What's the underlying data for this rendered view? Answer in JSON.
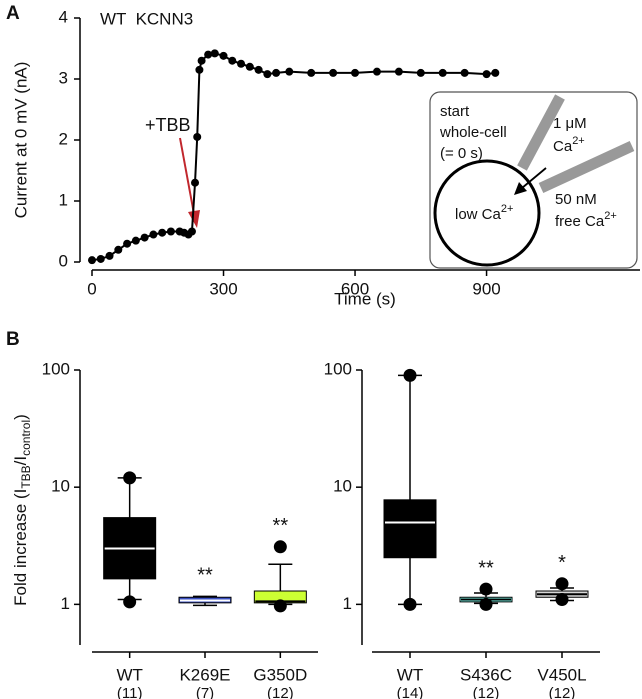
{
  "chart_data": [
    {
      "type": "line",
      "panel": "A",
      "title": "WT  KCNN3",
      "xlabel": "Time (s)",
      "ylabel": "Current at 0 mV (nA)",
      "x": [
        0,
        20,
        40,
        60,
        80,
        100,
        120,
        140,
        160,
        180,
        200,
        210,
        220,
        228,
        235,
        240,
        245,
        250,
        265,
        280,
        300,
        320,
        340,
        360,
        380,
        400,
        420,
        450,
        500,
        550,
        600,
        650,
        700,
        750,
        800,
        850,
        900,
        920
      ],
      "values": [
        0.03,
        0.05,
        0.1,
        0.2,
        0.3,
        0.35,
        0.4,
        0.45,
        0.48,
        0.5,
        0.5,
        0.48,
        0.45,
        0.5,
        1.3,
        2.05,
        3.15,
        3.3,
        3.4,
        3.42,
        3.38,
        3.3,
        3.25,
        3.2,
        3.15,
        3.08,
        3.1,
        3.12,
        3.1,
        3.1,
        3.1,
        3.12,
        3.12,
        3.1,
        3.1,
        3.1,
        3.08,
        3.1
      ],
      "color": "#000000",
      "xlim": [
        0,
        1250
      ],
      "xticks": [
        0,
        300,
        600,
        900
      ],
      "ylim": [
        0,
        4
      ],
      "yticks": [
        0,
        1,
        2,
        3,
        4
      ],
      "annotation": "+TBB",
      "annotation_color": "#c1272d",
      "inset": {
        "start": [
          "start",
          "whole-cell",
          "(= 0 s)"
        ],
        "pipette": [
          "1 μM",
          "Ca",
          "2+"
        ],
        "cell": [
          "low Ca",
          "2+"
        ],
        "bath": [
          "50 nM",
          "free Ca",
          "2+"
        ]
      }
    },
    {
      "type": "box",
      "panel": "B",
      "ylabel": [
        "Fold increase (I",
        "TBB",
        "/I",
        "control",
        ")"
      ],
      "log": true,
      "ylim": [
        0.45,
        100
      ],
      "yticks": [
        1,
        10,
        100
      ],
      "categories": [
        "WT",
        "K269E",
        "G350D"
      ],
      "n_labels": [
        "(11)",
        "(7)",
        "(12)"
      ],
      "significance": [
        null,
        "**",
        "**"
      ],
      "boxes": [
        {
          "whisker_low": 1.1,
          "q1": 1.65,
          "median": 3.0,
          "q3": 5.5,
          "whisker_high": 12,
          "outliers": [
            12,
            1.05
          ],
          "color": "#000000",
          "median_color": "#ffffff"
        },
        {
          "whisker_low": 0.98,
          "q1": 1.03,
          "median": 1.08,
          "q3": 1.15,
          "whisker_high": 1.17,
          "outliers": [],
          "color": "#3a4fc0",
          "median_color": "#ffffff"
        },
        {
          "whisker_low": 1.0,
          "q1": 1.03,
          "median": 1.06,
          "q3": 1.3,
          "whisker_high": 2.2,
          "outliers": [
            3.1,
            0.97
          ],
          "color": "#ccff33",
          "median_color": "#000000"
        }
      ]
    },
    {
      "type": "box",
      "log": true,
      "ylim": [
        0.45,
        100
      ],
      "yticks": [
        1,
        10,
        100
      ],
      "categories": [
        "WT",
        "S436C",
        "V450L"
      ],
      "n_labels": [
        "(14)",
        "(12)",
        "(12)"
      ],
      "significance": [
        null,
        "**",
        "*"
      ],
      "boxes": [
        {
          "whisker_low": 1.0,
          "q1": 2.5,
          "median": 5.0,
          "q3": 7.8,
          "whisker_high": 90,
          "outliers": [
            90,
            1.0
          ],
          "color": "#000000",
          "median_color": "#ffffff"
        },
        {
          "whisker_low": 1.02,
          "q1": 1.05,
          "median": 1.1,
          "q3": 1.15,
          "whisker_high": 1.25,
          "outliers": [
            1.35,
            1.0
          ],
          "color": "#7ffff0",
          "median_color": "#000000"
        },
        {
          "whisker_low": 1.08,
          "q1": 1.15,
          "median": 1.22,
          "q3": 1.3,
          "whisker_high": 1.38,
          "outliers": [
            1.5,
            1.1
          ],
          "color": "#d8d8d8",
          "median_color": "#000000"
        }
      ]
    }
  ]
}
